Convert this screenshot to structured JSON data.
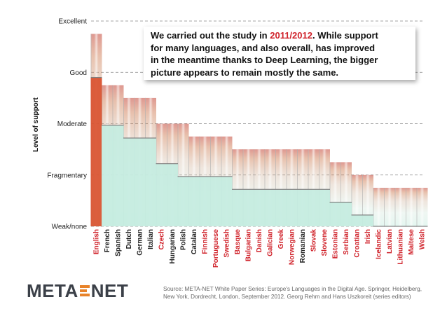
{
  "chart_data": {
    "type": "bar",
    "ylabel": "Level of support",
    "levels": [
      "Weak/none",
      "Fragmentary",
      "Moderate",
      "Good",
      "Excellent"
    ],
    "ylim": [
      0,
      4
    ],
    "grid": true,
    "categories": [
      "English",
      "French",
      "Spanish",
      "Dutch",
      "German",
      "Italian",
      "Czech",
      "Hungarian",
      "Polish",
      "Catalan",
      "Finnish",
      "Portuguese",
      "Swedish",
      "Basque",
      "Bulgarian",
      "Danish",
      "Galician",
      "Greek",
      "Norwegian",
      "Romanian",
      "Slovak",
      "Slovene",
      "Estonian",
      "Serbian",
      "Croatian",
      "Irish",
      "Icelandic",
      "Latvian",
      "Lithuanian",
      "Maltese",
      "Welsh"
    ],
    "highlighted": [
      "English",
      "Czech",
      "Finnish",
      "Portuguese",
      "Swedish",
      "Basque",
      "Bulgarian",
      "Danish",
      "Galician",
      "Greek",
      "Norwegian",
      "Slovak",
      "Slovene",
      "Estonian",
      "Serbian",
      "Croatian",
      "Irish",
      "Icelandic",
      "Latvian",
      "Lithuanian",
      "Maltese",
      "Welsh"
    ],
    "series": [
      {
        "values": [
          2.9,
          1.97,
          1.97,
          1.72,
          1.72,
          1.72,
          1.22,
          1.22,
          0.97,
          0.97,
          0.97,
          0.97,
          0.97,
          0.72,
          0.72,
          0.72,
          0.72,
          0.72,
          0.72,
          0.72,
          0.72,
          0.72,
          0.47,
          0.47,
          0.22,
          0.22,
          0.0,
          0.0,
          0.0,
          0.0,
          0.0
        ]
      },
      {
        "values": [
          3.75,
          2.75,
          2.75,
          2.5,
          2.5,
          2.5,
          2.0,
          2.0,
          2.0,
          1.75,
          1.75,
          1.75,
          1.75,
          1.5,
          1.5,
          1.5,
          1.5,
          1.5,
          1.5,
          1.5,
          1.5,
          1.5,
          1.25,
          1.25,
          1.0,
          1.0,
          0.75,
          0.75,
          0.75,
          0.75,
          0.75
        ]
      }
    ],
    "colors": {
      "highlight_label": "#d0232b",
      "normal_label": "#222222",
      "grid": "#888888"
    }
  },
  "note": {
    "line1_pre": "We carried out the study in ",
    "line1_highlight": "2011/2012",
    "line1_post": ". While support",
    "line2": "for many languages, and also overall, has improved",
    "line3": "in the meantime thanks to Deep Learning, the bigger",
    "line4": "picture appears to remain mostly the same."
  },
  "logo": {
    "left": "META",
    "right": "NET"
  },
  "source": {
    "line1": "Source: META-NET White Paper Series: Europe's Languages in the Digital Age. Springer, Heidelberg,",
    "line2": "New York, Dordrecht, London, September 2012. Georg Rehm and Hans Uszkoreit (series editors)"
  }
}
